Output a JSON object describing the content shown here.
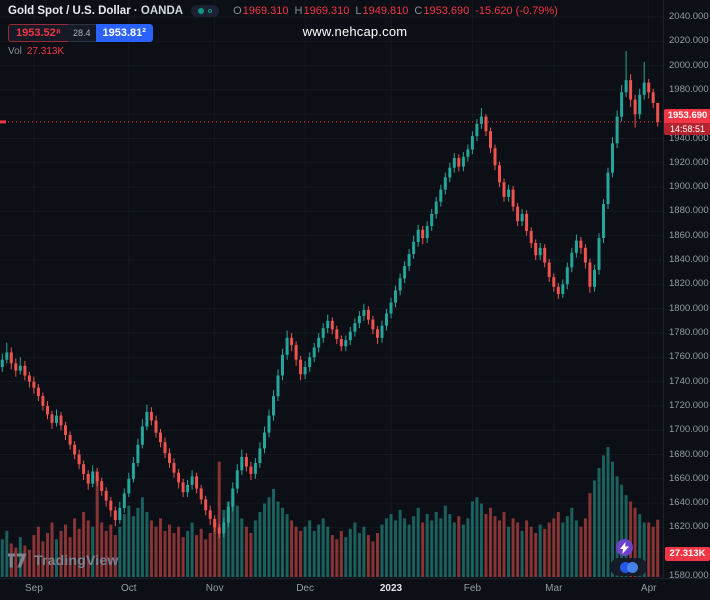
{
  "header": {
    "symbol": "Gold Spot / U.S. Dollar",
    "separator": "·",
    "exchange": "OANDA",
    "ohlc": {
      "o_label": "O",
      "o": "1969.310",
      "h_label": "H",
      "h": "1969.310",
      "l_label": "L",
      "l": "1949.810",
      "c_label": "C",
      "c": "1953.690",
      "change": "-15.620 (-0.79%)"
    },
    "sell_price": "1953.52⁸",
    "spread": "28.4",
    "buy_price": "1953.81²",
    "vol_label": "Vol",
    "vol_value": "27.313K"
  },
  "watermark": "www.nehcap.com",
  "logo_text": "TradingView",
  "price_tag": {
    "price": "1953.690",
    "countdown": "14:58:51"
  },
  "volume_tag": "27.313K",
  "colors": {
    "up": "#26a69a",
    "down": "#ef5350",
    "accent_red": "#f23645",
    "accent_blue": "#2962ff",
    "grid": "rgba(151,161,176,0.07)"
  },
  "chart_data": {
    "type": "candlestick",
    "title": "Gold Spot / U.S. Dollar · OANDA",
    "timeframe_shown": "Sep 2022 – Apr 2023, daily bars",
    "y_axis": {
      "price_min": 1580,
      "price_max": 2040,
      "step": 20,
      "tick_format": "0.000"
    },
    "x_labels": [
      {
        "text": "Sep",
        "i": 7
      },
      {
        "text": "Oct",
        "i": 28
      },
      {
        "text": "Nov",
        "i": 47
      },
      {
        "text": "Dec",
        "i": 67
      },
      {
        "text": "2023",
        "i": 86,
        "major": true
      },
      {
        "text": "Feb",
        "i": 104
      },
      {
        "text": "Mar",
        "i": 122
      },
      {
        "text": "Apr",
        "i": 143
      }
    ],
    "current_price": 1953.69,
    "last_bar": {
      "open": 1969.31,
      "high": 1969.31,
      "low": 1949.81,
      "close": 1953.69,
      "change": -15.62,
      "change_pct": -0.79,
      "volume_k": 27.313
    },
    "candles": [
      [
        1752,
        1763,
        1748,
        1758
      ],
      [
        1758,
        1772,
        1755,
        1764
      ],
      [
        1764,
        1768,
        1750,
        1755
      ],
      [
        1755,
        1759,
        1744,
        1749
      ],
      [
        1749,
        1760,
        1746,
        1753
      ],
      [
        1753,
        1757,
        1741,
        1745
      ],
      [
        1745,
        1748,
        1735,
        1740
      ],
      [
        1740,
        1744,
        1730,
        1735
      ],
      [
        1735,
        1738,
        1724,
        1728
      ],
      [
        1728,
        1731,
        1716,
        1720
      ],
      [
        1720,
        1724,
        1709,
        1713
      ],
      [
        1713,
        1716,
        1701,
        1706
      ],
      [
        1706,
        1717,
        1703,
        1712
      ],
      [
        1712,
        1715,
        1700,
        1704
      ],
      [
        1704,
        1707,
        1692,
        1696
      ],
      [
        1696,
        1699,
        1684,
        1688
      ],
      [
        1688,
        1691,
        1676,
        1680
      ],
      [
        1680,
        1684,
        1668,
        1672
      ],
      [
        1672,
        1675,
        1659,
        1664
      ],
      [
        1664,
        1667,
        1651,
        1656
      ],
      [
        1656,
        1671,
        1653,
        1666
      ],
      [
        1666,
        1669,
        1654,
        1658
      ],
      [
        1658,
        1661,
        1646,
        1650
      ],
      [
        1650,
        1653,
        1637,
        1642
      ],
      [
        1642,
        1645,
        1629,
        1634
      ],
      [
        1634,
        1637,
        1621,
        1626
      ],
      [
        1626,
        1641,
        1623,
        1636
      ],
      [
        1636,
        1652,
        1632,
        1648
      ],
      [
        1648,
        1665,
        1645,
        1660
      ],
      [
        1660,
        1678,
        1657,
        1673
      ],
      [
        1673,
        1693,
        1670,
        1688
      ],
      [
        1688,
        1709,
        1685,
        1703
      ],
      [
        1703,
        1721,
        1700,
        1715
      ],
      [
        1715,
        1719,
        1704,
        1708
      ],
      [
        1708,
        1712,
        1694,
        1698
      ],
      [
        1698,
        1701,
        1686,
        1690
      ],
      [
        1690,
        1694,
        1677,
        1681
      ],
      [
        1681,
        1685,
        1669,
        1673
      ],
      [
        1673,
        1677,
        1661,
        1665
      ],
      [
        1665,
        1668,
        1652,
        1657
      ],
      [
        1657,
        1660,
        1645,
        1649
      ],
      [
        1649,
        1659,
        1645,
        1655
      ],
      [
        1655,
        1667,
        1651,
        1662
      ],
      [
        1662,
        1665,
        1648,
        1652
      ],
      [
        1652,
        1655,
        1639,
        1643
      ],
      [
        1643,
        1646,
        1630,
        1634
      ],
      [
        1634,
        1638,
        1622,
        1627
      ],
      [
        1627,
        1630,
        1616,
        1620
      ],
      [
        1620,
        1623,
        1611,
        1615
      ],
      [
        1615,
        1628,
        1612,
        1624
      ],
      [
        1624,
        1641,
        1620,
        1637
      ],
      [
        1637,
        1657,
        1633,
        1652
      ],
      [
        1652,
        1672,
        1648,
        1667
      ],
      [
        1667,
        1684,
        1663,
        1678
      ],
      [
        1678,
        1681,
        1666,
        1670
      ],
      [
        1670,
        1674,
        1659,
        1664
      ],
      [
        1664,
        1677,
        1660,
        1673
      ],
      [
        1673,
        1690,
        1669,
        1685
      ],
      [
        1685,
        1703,
        1681,
        1698
      ],
      [
        1698,
        1717,
        1694,
        1712
      ],
      [
        1712,
        1733,
        1708,
        1728
      ],
      [
        1728,
        1750,
        1724,
        1745
      ],
      [
        1745,
        1767,
        1741,
        1762
      ],
      [
        1762,
        1782,
        1758,
        1776
      ],
      [
        1776,
        1780,
        1765,
        1770
      ],
      [
        1770,
        1773,
        1753,
        1758
      ],
      [
        1758,
        1761,
        1741,
        1746
      ],
      [
        1746,
        1757,
        1742,
        1752
      ],
      [
        1752,
        1764,
        1748,
        1760
      ],
      [
        1760,
        1772,
        1756,
        1768
      ],
      [
        1768,
        1780,
        1764,
        1776
      ],
      [
        1776,
        1788,
        1772,
        1784
      ],
      [
        1784,
        1795,
        1780,
        1790
      ],
      [
        1790,
        1793,
        1779,
        1783
      ],
      [
        1783,
        1786,
        1771,
        1775
      ],
      [
        1775,
        1778,
        1765,
        1769
      ],
      [
        1769,
        1778,
        1765,
        1774
      ],
      [
        1774,
        1785,
        1770,
        1781
      ],
      [
        1781,
        1792,
        1777,
        1788
      ],
      [
        1788,
        1798,
        1784,
        1794
      ],
      [
        1794,
        1804,
        1790,
        1799
      ],
      [
        1799,
        1802,
        1787,
        1791
      ],
      [
        1791,
        1794,
        1779,
        1783
      ],
      [
        1783,
        1786,
        1771,
        1776
      ],
      [
        1776,
        1790,
        1772,
        1786
      ],
      [
        1786,
        1800,
        1782,
        1796
      ],
      [
        1796,
        1809,
        1792,
        1805
      ],
      [
        1805,
        1819,
        1801,
        1815
      ],
      [
        1815,
        1829,
        1811,
        1825
      ],
      [
        1825,
        1839,
        1821,
        1835
      ],
      [
        1835,
        1849,
        1831,
        1845
      ],
      [
        1845,
        1860,
        1841,
        1855
      ],
      [
        1855,
        1869,
        1851,
        1865
      ],
      [
        1865,
        1868,
        1853,
        1858
      ],
      [
        1858,
        1872,
        1854,
        1868
      ],
      [
        1868,
        1882,
        1864,
        1878
      ],
      [
        1878,
        1892,
        1874,
        1888
      ],
      [
        1888,
        1902,
        1884,
        1898
      ],
      [
        1898,
        1912,
        1894,
        1908
      ],
      [
        1908,
        1920,
        1904,
        1916
      ],
      [
        1916,
        1928,
        1912,
        1924
      ],
      [
        1924,
        1927,
        1913,
        1917
      ],
      [
        1917,
        1929,
        1913,
        1925
      ],
      [
        1925,
        1935,
        1921,
        1931
      ],
      [
        1931,
        1946,
        1927,
        1942
      ],
      [
        1942,
        1956,
        1938,
        1952
      ],
      [
        1952,
        1965,
        1948,
        1958
      ],
      [
        1958,
        1960,
        1942,
        1946
      ],
      [
        1946,
        1949,
        1928,
        1932
      ],
      [
        1932,
        1935,
        1914,
        1918
      ],
      [
        1918,
        1921,
        1900,
        1904
      ],
      [
        1904,
        1907,
        1888,
        1892
      ],
      [
        1892,
        1902,
        1888,
        1898
      ],
      [
        1898,
        1901,
        1880,
        1884
      ],
      [
        1884,
        1887,
        1868,
        1872
      ],
      [
        1872,
        1882,
        1868,
        1878
      ],
      [
        1878,
        1881,
        1860,
        1864
      ],
      [
        1864,
        1867,
        1850,
        1854
      ],
      [
        1854,
        1857,
        1840,
        1844
      ],
      [
        1844,
        1854,
        1840,
        1850
      ],
      [
        1850,
        1853,
        1834,
        1838
      ],
      [
        1838,
        1841,
        1822,
        1826
      ],
      [
        1826,
        1829,
        1814,
        1818
      ],
      [
        1818,
        1821,
        1808,
        1812
      ],
      [
        1812,
        1824,
        1809,
        1820
      ],
      [
        1820,
        1838,
        1816,
        1834
      ],
      [
        1834,
        1850,
        1830,
        1846
      ],
      [
        1846,
        1861,
        1842,
        1856
      ],
      [
        1856,
        1859,
        1845,
        1850
      ],
      [
        1850,
        1853,
        1833,
        1838
      ],
      [
        1838,
        1841,
        1813,
        1818
      ],
      [
        1818,
        1836,
        1814,
        1832
      ],
      [
        1832,
        1862,
        1828,
        1858
      ],
      [
        1858,
        1890,
        1854,
        1886
      ],
      [
        1886,
        1916,
        1882,
        1912
      ],
      [
        1912,
        1941,
        1908,
        1936
      ],
      [
        1936,
        1963,
        1932,
        1958
      ],
      [
        1958,
        1984,
        1954,
        1978
      ],
      [
        1978,
        2012,
        1974,
        1988
      ],
      [
        1988,
        1993,
        1966,
        1972
      ],
      [
        1972,
        1976,
        1949,
        1960
      ],
      [
        1960,
        1981,
        1956,
        1976
      ],
      [
        1976,
        2003,
        1972,
        1986
      ],
      [
        1986,
        1989,
        1973,
        1978
      ],
      [
        1978,
        1981,
        1965,
        1969.31
      ],
      [
        1969.31,
        1969.31,
        1949.81,
        1953.69
      ]
    ],
    "volumes_k": [
      18,
      22,
      16,
      14,
      19,
      15,
      13,
      20,
      24,
      17,
      21,
      26,
      18,
      22,
      25,
      19,
      28,
      23,
      31,
      27,
      24,
      48,
      26,
      22,
      25,
      20,
      24,
      30,
      34,
      29,
      33,
      38,
      31,
      27,
      24,
      28,
      22,
      25,
      21,
      24,
      19,
      22,
      26,
      20,
      23,
      18,
      21,
      26,
      55,
      32,
      36,
      40,
      34,
      28,
      24,
      21,
      27,
      31,
      35,
      38,
      42,
      36,
      33,
      30,
      27,
      24,
      22,
      24,
      27,
      22,
      25,
      28,
      24,
      20,
      18,
      22,
      19,
      23,
      26,
      21,
      24,
      20,
      17,
      21,
      25,
      28,
      30,
      27,
      32,
      28,
      25,
      29,
      33,
      26,
      30,
      27,
      31,
      28,
      34,
      30,
      26,
      29,
      25,
      28,
      36,
      38,
      35,
      30,
      33,
      29,
      27,
      31,
      24,
      28,
      26,
      22,
      27,
      24,
      21,
      25,
      23,
      26,
      28,
      31,
      26,
      29,
      33,
      27,
      24,
      28,
      40,
      46,
      52,
      58,
      62,
      55,
      48,
      44,
      39,
      36,
      33,
      30,
      26,
      26,
      24,
      27.313
    ]
  }
}
